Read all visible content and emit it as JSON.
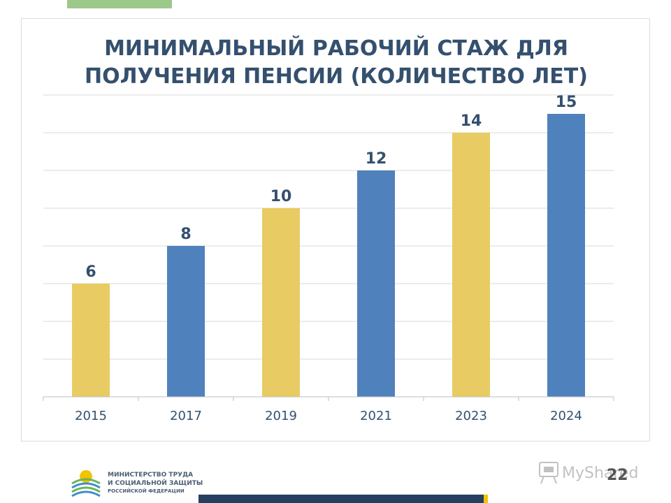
{
  "chart_data": {
    "type": "bar",
    "title_line1": "МИНИМАЛЬНЫЙ РАБОЧИЙ СТАЖ ДЛЯ",
    "title_line2": "ПОЛУЧЕНИЯ ПЕНСИИ (КОЛИЧЕСТВО ЛЕТ)",
    "categories": [
      "2015",
      "2017",
      "2019",
      "2021",
      "2023",
      "2024"
    ],
    "values": [
      6,
      8,
      10,
      12,
      14,
      15
    ],
    "ylim": [
      0,
      16
    ],
    "grid": true,
    "bar_colors": [
      "#e8cc63",
      "#4f81bd",
      "#e8cc63",
      "#4f81bd",
      "#e8cc63",
      "#4f81bd"
    ],
    "xlabel": "",
    "ylabel": ""
  },
  "colors": {
    "title": "#34506e",
    "label": "#34506e",
    "grid": "#d9d9d9"
  },
  "footer": {
    "ministry_line1": "МИНИСТЕРСТВО ТРУДА",
    "ministry_line2": "И СОЦИАЛЬНОЙ ЗАЩИТЫ",
    "ministry_line3": "РОССИЙСКОЙ ФЕДЕРАЦИИ",
    "page_number": "22"
  },
  "watermark": {
    "text": "MyShared",
    "icon": "projector-icon"
  }
}
